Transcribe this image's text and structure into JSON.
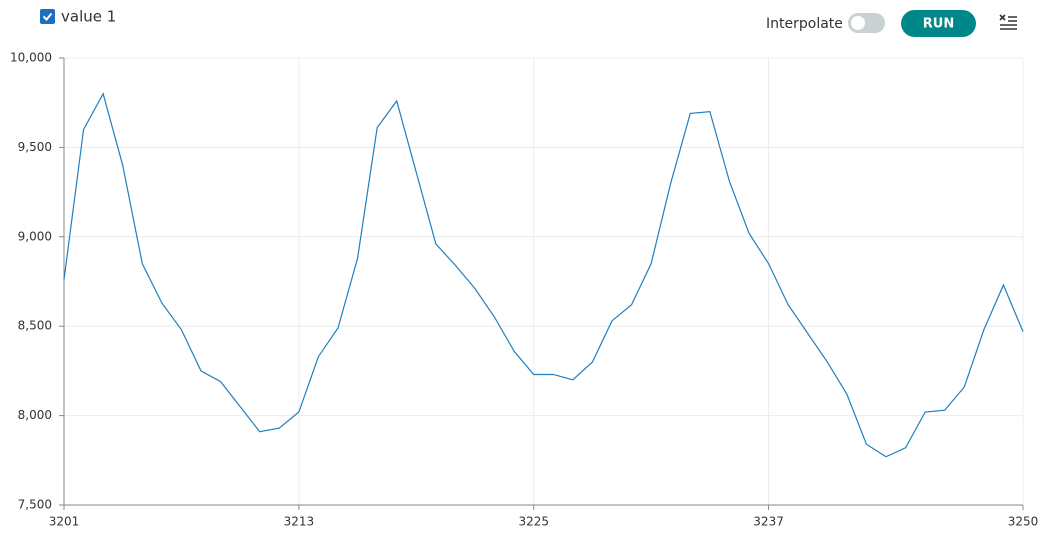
{
  "chart_data": {
    "type": "line",
    "x": [
      3201,
      3202,
      3203,
      3204,
      3205,
      3206,
      3207,
      3208,
      3209,
      3210,
      3211,
      3212,
      3213,
      3214,
      3215,
      3216,
      3217,
      3218,
      3219,
      3220,
      3221,
      3222,
      3223,
      3224,
      3225,
      3226,
      3227,
      3228,
      3229,
      3230,
      3231,
      3232,
      3233,
      3234,
      3235,
      3236,
      3237,
      3238,
      3239,
      3240,
      3241,
      3242,
      3243,
      3244,
      3245,
      3246,
      3247,
      3248,
      3249,
      3250
    ],
    "series": [
      {
        "name": "value 1",
        "color": "#1f7fbf",
        "values": [
          8760,
          9600,
          9800,
          9400,
          8850,
          8630,
          8480,
          8250,
          8190,
          8050,
          7910,
          7930,
          8020,
          8330,
          8490,
          8880,
          9610,
          9760,
          9360,
          8960,
          8840,
          8710,
          8550,
          8360,
          8230,
          8230,
          8200,
          8300,
          8530,
          8620,
          8850,
          9300,
          9690,
          9700,
          9310,
          9020,
          8850,
          8620,
          8460,
          8300,
          8120,
          7840,
          7770,
          7820,
          8020,
          8030,
          8160,
          8480,
          8730,
          8470
        ]
      }
    ],
    "xlim": [
      3201,
      3250
    ],
    "xticks": [
      3201,
      3213,
      3225,
      3237,
      3250
    ],
    "ylim": [
      7500,
      10000
    ],
    "yticks": [
      {
        "value": 7500,
        "label": "7,500"
      },
      {
        "value": 8000,
        "label": "8,000"
      },
      {
        "value": 8500,
        "label": "8,500"
      },
      {
        "value": 9000,
        "label": "9,000"
      },
      {
        "value": 9500,
        "label": "9,500"
      },
      {
        "value": 10000,
        "label": "10,000"
      }
    ],
    "grid": true
  },
  "controls": {
    "interpolate": "Interpolate",
    "run": "RUN"
  }
}
